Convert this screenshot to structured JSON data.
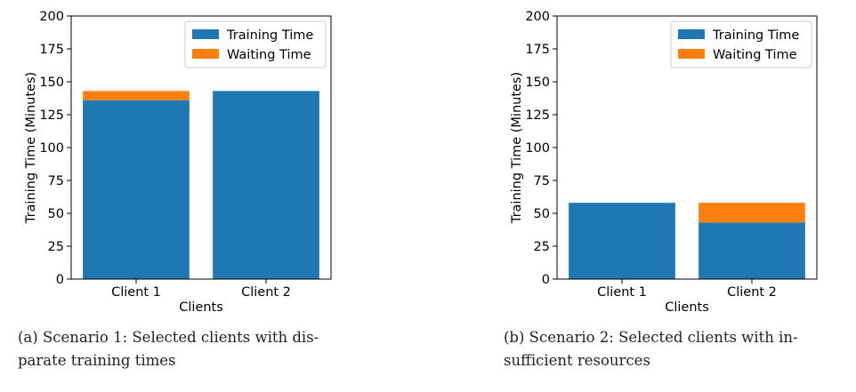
{
  "chart_data": [
    {
      "type": "bar",
      "stacked": true,
      "categories": [
        "Client 1",
        "Client 2"
      ],
      "series": [
        {
          "name": "Training Time",
          "color": "#1f77b4",
          "values": [
            136,
            143
          ]
        },
        {
          "name": "Waiting Time",
          "color": "#ff7f0e",
          "values": [
            7,
            0
          ]
        }
      ],
      "xlabel": "Clients",
      "ylabel": "Training Time (Minutes)",
      "ylim": [
        0,
        200
      ],
      "yticks": [
        0,
        25,
        50,
        75,
        100,
        125,
        150,
        175,
        200
      ],
      "legend": "top-right",
      "grid": false
    },
    {
      "type": "bar",
      "stacked": true,
      "categories": [
        "Client 1",
        "Client 2"
      ],
      "series": [
        {
          "name": "Training Time",
          "color": "#1f77b4",
          "values": [
            58,
            43
          ]
        },
        {
          "name": "Waiting Time",
          "color": "#ff7f0e",
          "values": [
            0,
            15
          ]
        }
      ],
      "xlabel": "Clients",
      "ylabel": "Training Time (Minutes)",
      "ylim": [
        0,
        200
      ],
      "yticks": [
        0,
        25,
        50,
        75,
        100,
        125,
        150,
        175,
        200
      ],
      "legend": "top-right",
      "grid": false
    }
  ],
  "captions": [
    {
      "line1": "(a) Scenario 1: Selected clients with dis-",
      "line2": "parate training times"
    },
    {
      "line1": "(b) Scenario 2: Selected clients with in-",
      "line2": "sufficient resources"
    }
  ]
}
